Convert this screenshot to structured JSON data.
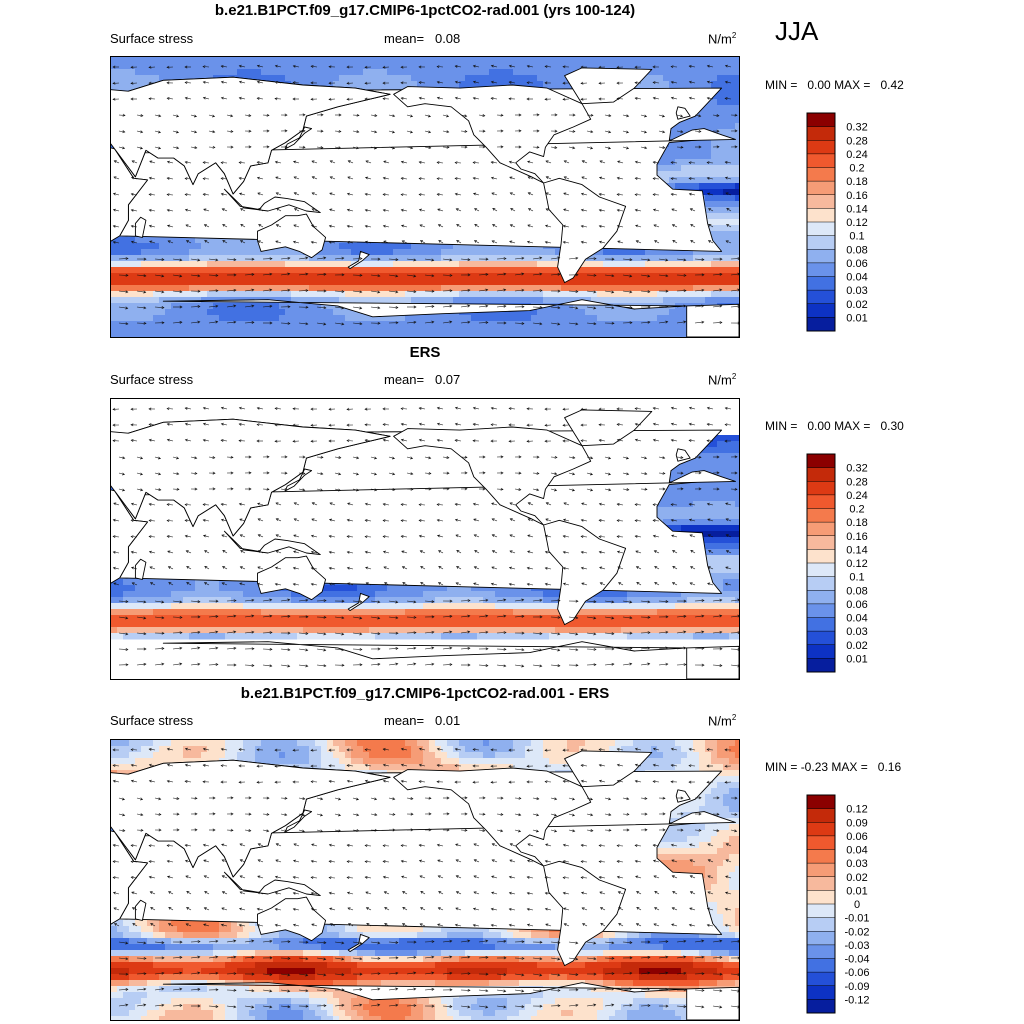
{
  "season": "JJA",
  "panels": [
    {
      "title": "b.e21.B1PCT.f09_g17.CMIP6-1pctCO2-rad.001 (yrs 100-124)",
      "left_label": "Surface stress",
      "mean_label": "mean=",
      "mean_value": "0.08",
      "units": "N/m",
      "units_sup": "2",
      "min_label": "MIN =",
      "min_value": "0.00",
      "max_label": "MAX =",
      "max_value": "0.42",
      "mode": "abs",
      "levels": [
        "0.32",
        "0.28",
        "0.24",
        "0.2",
        "0.18",
        "0.16",
        "0.14",
        "0.12",
        "0.1",
        "0.08",
        "0.06",
        "0.04",
        "0.03",
        "0.02",
        "0.01"
      ],
      "colors": [
        "#8b0000",
        "#c42a0a",
        "#dd3a14",
        "#f0592e",
        "#f47a4c",
        "#f69c76",
        "#f7b99d",
        "#fde2cc",
        "#dde8f8",
        "#b7cdf4",
        "#8fb0ef",
        "#6a92ea",
        "#4271e2",
        "#2450d8",
        "#0d32c4",
        "#061e9e"
      ]
    },
    {
      "title": "ERS",
      "left_label": "Surface stress",
      "mean_label": "mean=",
      "mean_value": "0.07",
      "units": "N/m",
      "units_sup": "2",
      "min_label": "MIN =",
      "min_value": "0.00",
      "max_label": "MAX =",
      "max_value": "0.30",
      "mode": "abs",
      "levels": [
        "0.32",
        "0.28",
        "0.24",
        "0.2",
        "0.18",
        "0.16",
        "0.14",
        "0.12",
        "0.1",
        "0.08",
        "0.06",
        "0.04",
        "0.03",
        "0.02",
        "0.01"
      ],
      "colors": [
        "#8b0000",
        "#c42a0a",
        "#dd3a14",
        "#f0592e",
        "#f47a4c",
        "#f69c76",
        "#f7b99d",
        "#fde2cc",
        "#dde8f8",
        "#b7cdf4",
        "#8fb0ef",
        "#6a92ea",
        "#4271e2",
        "#2450d8",
        "#0d32c4",
        "#061e9e"
      ]
    },
    {
      "title": "b.e21.B1PCT.f09_g17.CMIP6-1pctCO2-rad.001 - ERS",
      "left_label": "Surface stress",
      "mean_label": "mean=",
      "mean_value": "0.01",
      "units": "N/m",
      "units_sup": "2",
      "min_label": "MIN =",
      "min_value": "-0.23",
      "max_label": "MAX =",
      "max_value": "0.16",
      "mode": "diff",
      "levels": [
        "0.12",
        "0.09",
        "0.06",
        "0.04",
        "0.03",
        "0.02",
        "0.01",
        "0",
        "-0.01",
        "-0.02",
        "-0.03",
        "-0.04",
        "-0.06",
        "-0.09",
        "-0.12"
      ],
      "colors": [
        "#8b0000",
        "#c42a0a",
        "#dd3a14",
        "#f0592e",
        "#f47a4c",
        "#f69c76",
        "#f7b99d",
        "#fde2cc",
        "#dde8f8",
        "#b7cdf4",
        "#8fb0ef",
        "#6a92ea",
        "#4271e2",
        "#2450d8",
        "#0d32c4",
        "#061e9e"
      ]
    }
  ]
}
